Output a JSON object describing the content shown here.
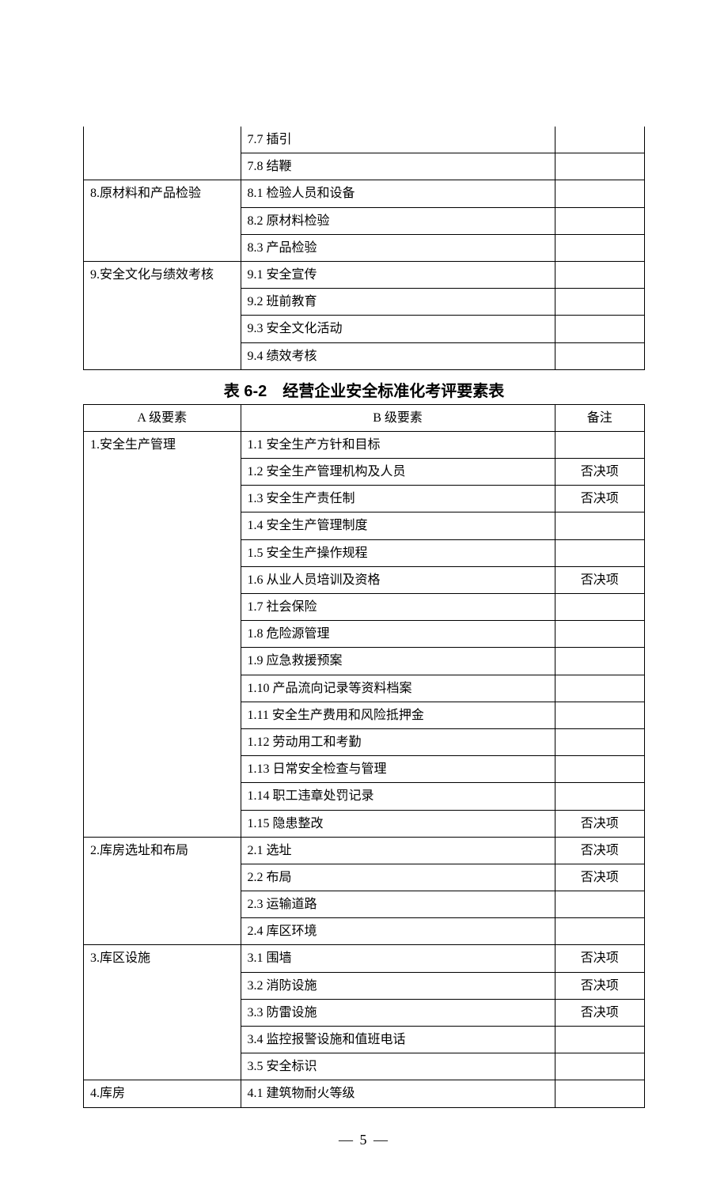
{
  "table1": {
    "rows": [
      {
        "a": "",
        "b": "7.7 插引",
        "c": "",
        "aRowspan": 1,
        "showA": false
      },
      {
        "a": "",
        "b": "7.8 结鞭",
        "c": "",
        "showA": false
      },
      {
        "a": "8.原材料和产品检验",
        "b": "8.1 检验人员和设备",
        "c": "",
        "aRowspan": 3,
        "showA": true
      },
      {
        "a": "",
        "b": "8.2 原材料检验",
        "c": "",
        "showA": false
      },
      {
        "a": "",
        "b": "8.3 产品检验",
        "c": "",
        "showA": false
      },
      {
        "a": "9.安全文化与绩效考核",
        "b": "9.1 安全宣传",
        "c": "",
        "aRowspan": 4,
        "showA": true
      },
      {
        "a": "",
        "b": "9.2 班前教育",
        "c": "",
        "showA": false
      },
      {
        "a": "",
        "b": "9.3 安全文化活动",
        "c": "",
        "showA": false
      },
      {
        "a": "",
        "b": "9.4 绩效考核",
        "c": "",
        "showA": false
      }
    ]
  },
  "table2": {
    "title": "表 6-2　经营企业安全标准化考评要素表",
    "headers": {
      "a": "A 级要素",
      "b": "B 级要素",
      "c": "备注"
    },
    "rows": [
      {
        "a": "1.安全生产管理",
        "b": "1.1 安全生产方针和目标",
        "c": "",
        "aRowspan": 15,
        "showA": true
      },
      {
        "a": "",
        "b": "1.2 安全生产管理机构及人员",
        "c": "否决项",
        "showA": false
      },
      {
        "a": "",
        "b": "1.3 安全生产责任制",
        "c": "否决项",
        "showA": false
      },
      {
        "a": "",
        "b": "1.4 安全生产管理制度",
        "c": "",
        "showA": false
      },
      {
        "a": "",
        "b": "1.5 安全生产操作规程",
        "c": "",
        "showA": false
      },
      {
        "a": "",
        "b": "1.6 从业人员培训及资格",
        "c": "否决项",
        "showA": false
      },
      {
        "a": "",
        "b": "1.7 社会保险",
        "c": "",
        "showA": false
      },
      {
        "a": "",
        "b": "1.8 危险源管理",
        "c": "",
        "showA": false
      },
      {
        "a": "",
        "b": "1.9 应急救援预案",
        "c": "",
        "showA": false
      },
      {
        "a": "",
        "b": "1.10 产品流向记录等资料档案",
        "c": "",
        "showA": false
      },
      {
        "a": "",
        "b": "1.11 安全生产费用和风险抵押金",
        "c": "",
        "showA": false
      },
      {
        "a": "",
        "b": "1.12 劳动用工和考勤",
        "c": "",
        "showA": false
      },
      {
        "a": "",
        "b": "1.13 日常安全检查与管理",
        "c": "",
        "showA": false
      },
      {
        "a": "",
        "b": "1.14 职工违章处罚记录",
        "c": "",
        "showA": false
      },
      {
        "a": "",
        "b": "1.15 隐患整改",
        "c": "否决项",
        "showA": false
      },
      {
        "a": "2.库房选址和布局",
        "b": "2.1 选址",
        "c": "否决项",
        "aRowspan": 4,
        "showA": true
      },
      {
        "a": "",
        "b": "2.2 布局",
        "c": "否决项",
        "showA": false
      },
      {
        "a": "",
        "b": "2.3 运输道路",
        "c": "",
        "showA": false
      },
      {
        "a": "",
        "b": "2.4 库区环境",
        "c": "",
        "showA": false
      },
      {
        "a": "3.库区设施",
        "b": "3.1 围墙",
        "c": "否决项",
        "aRowspan": 5,
        "showA": true
      },
      {
        "a": "",
        "b": "3.2 消防设施",
        "c": "否决项",
        "showA": false
      },
      {
        "a": "",
        "b": "3.3 防雷设施",
        "c": "否决项",
        "showA": false
      },
      {
        "a": "",
        "b": "3.4 监控报警设施和值班电话",
        "c": "",
        "showA": false
      },
      {
        "a": "",
        "b": "3.5 安全标识",
        "c": "",
        "showA": false
      },
      {
        "a": "4.库房",
        "b": "4.1 建筑物耐火等级",
        "c": "",
        "aRowspan": 1,
        "showA": true
      }
    ]
  },
  "pageNumber": "— 5 —"
}
